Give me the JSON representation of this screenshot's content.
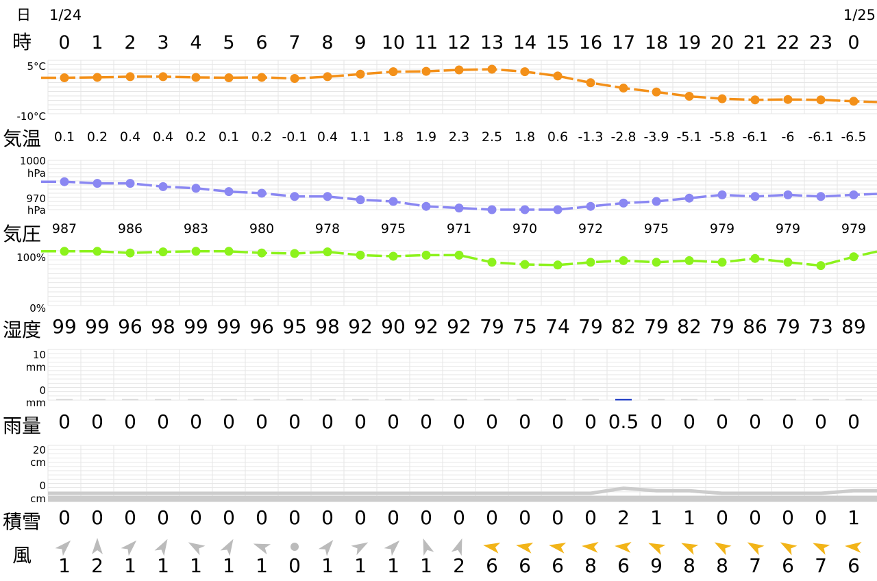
{
  "dates": {
    "label": "日",
    "day1": "1/24",
    "day2": "1/25"
  },
  "hours": {
    "label": "時",
    "values": [
      "0",
      "1",
      "2",
      "3",
      "4",
      "5",
      "6",
      "7",
      "8",
      "9",
      "10",
      "11",
      "12",
      "13",
      "14",
      "15",
      "16",
      "17",
      "18",
      "19",
      "20",
      "21",
      "22",
      "23",
      "0"
    ]
  },
  "temperature": {
    "label": "気温",
    "color": "#f39019",
    "axis_top": "5°C",
    "axis_bottom": "-10°C",
    "ylim": [
      -10,
      5
    ],
    "labels": [
      "0.1",
      "0.2",
      "0.4",
      "0.4",
      "0.2",
      "0.1",
      "0.2",
      "-0.1",
      "0.4",
      "1.1",
      "1.8",
      "1.9",
      "2.3",
      "2.5",
      "1.8",
      "0.6",
      "-1.3",
      "-2.8",
      "-3.9",
      "-5.1",
      "-5.8",
      "-6.1",
      "-6",
      "-6.1",
      "-6.5"
    ]
  },
  "pressure": {
    "label": "気圧",
    "color": "#8a87f2",
    "axis_top_value": "1000",
    "axis_top_unit": "hPa",
    "axis_bottom_value": "970",
    "axis_bottom_unit": "hPa",
    "ylim": [
      970,
      1000
    ],
    "labels": [
      "987",
      "986",
      "983",
      "980",
      "978",
      "975",
      "971",
      "970",
      "972",
      "975",
      "979",
      "979",
      "979"
    ]
  },
  "humidity": {
    "label": "湿度",
    "color": "#8cf21c",
    "axis_top": "100%",
    "axis_bottom": "0%",
    "ylim": [
      0,
      100
    ],
    "labels": [
      "99",
      "99",
      "96",
      "98",
      "99",
      "99",
      "96",
      "95",
      "98",
      "92",
      "90",
      "92",
      "92",
      "79",
      "75",
      "74",
      "79",
      "82",
      "79",
      "82",
      "79",
      "86",
      "79",
      "73",
      "89"
    ]
  },
  "rain": {
    "label": "雨量",
    "color": "#2a46c8",
    "axis_top_value": "10",
    "axis_top_unit": "mm",
    "axis_bottom_value": "0",
    "axis_bottom_unit": "mm",
    "labels": [
      "0",
      "0",
      "0",
      "0",
      "0",
      "0",
      "0",
      "0",
      "0",
      "0",
      "0",
      "0",
      "0",
      "0",
      "0",
      "0",
      "0",
      "0.5",
      "0",
      "0",
      "0",
      "0",
      "0",
      "0",
      "0"
    ]
  },
  "snow": {
    "label": "積雪",
    "color": "#cccccc",
    "axis_top_value": "20",
    "axis_top_unit": "cm",
    "axis_bottom_value": "0",
    "axis_bottom_unit": "cm",
    "labels": [
      "0",
      "0",
      "0",
      "0",
      "0",
      "0",
      "0",
      "0",
      "0",
      "0",
      "0",
      "0",
      "0",
      "0",
      "0",
      "0",
      "0",
      "2",
      "1",
      "1",
      "0",
      "0",
      "0",
      "0",
      "1"
    ]
  },
  "wind": {
    "label": "風",
    "calm_color": "#bbbbbb",
    "strong_color": "#f2b418",
    "speeds": [
      "1",
      "2",
      "1",
      "1",
      "1",
      "1",
      "1",
      "0",
      "1",
      "1",
      "1",
      "1",
      "2",
      "6",
      "6",
      "6",
      "8",
      "6",
      "9",
      "8",
      "8",
      "7",
      "6",
      "7",
      "6"
    ],
    "direction_deg": [
      45,
      0,
      45,
      30,
      300,
      30,
      290,
      null,
      40,
      60,
      45,
      340,
      20,
      280,
      280,
      280,
      275,
      275,
      295,
      295,
      300,
      300,
      300,
      295,
      275
    ]
  },
  "chart_data": [
    {
      "type": "line",
      "title": "",
      "ylabel": "気温",
      "ylim": [
        -10,
        5
      ],
      "x": [
        "0",
        "1",
        "2",
        "3",
        "4",
        "5",
        "6",
        "7",
        "8",
        "9",
        "10",
        "11",
        "12",
        "13",
        "14",
        "15",
        "16",
        "17",
        "18",
        "19",
        "20",
        "21",
        "22",
        "23",
        "0"
      ],
      "values": [
        0.1,
        0.2,
        0.4,
        0.4,
        0.2,
        0.1,
        0.2,
        -0.1,
        0.4,
        1.1,
        1.8,
        1.9,
        2.3,
        2.5,
        1.8,
        0.6,
        -1.3,
        -2.8,
        -3.9,
        -5.1,
        -5.8,
        -6.1,
        -6,
        -6.1,
        -6.5
      ]
    },
    {
      "type": "line",
      "title": "",
      "ylabel": "気圧",
      "ylim": [
        970,
        1000
      ],
      "x": [
        "0",
        "1",
        "2",
        "3",
        "4",
        "5",
        "6",
        "7",
        "8",
        "9",
        "10",
        "11",
        "12",
        "13",
        "14",
        "15",
        "16",
        "17",
        "18",
        "19",
        "20",
        "21",
        "22",
        "23",
        "0"
      ],
      "values": [
        987,
        986,
        986,
        984,
        983,
        981,
        980,
        978,
        978,
        976,
        975,
        972,
        971,
        970,
        970,
        970,
        972,
        974,
        975,
        977,
        979,
        978,
        979,
        978,
        979
      ]
    },
    {
      "type": "line",
      "title": "",
      "ylabel": "湿度",
      "ylim": [
        0,
        100
      ],
      "x": [
        "0",
        "1",
        "2",
        "3",
        "4",
        "5",
        "6",
        "7",
        "8",
        "9",
        "10",
        "11",
        "12",
        "13",
        "14",
        "15",
        "16",
        "17",
        "18",
        "19",
        "20",
        "21",
        "22",
        "23",
        "0"
      ],
      "values": [
        99,
        99,
        96,
        98,
        99,
        99,
        96,
        95,
        98,
        92,
        90,
        92,
        92,
        79,
        75,
        74,
        79,
        82,
        79,
        82,
        79,
        86,
        79,
        73,
        89
      ]
    },
    {
      "type": "bar",
      "title": "",
      "ylabel": "雨量",
      "ylim": [
        0,
        10
      ],
      "x": [
        "0",
        "1",
        "2",
        "3",
        "4",
        "5",
        "6",
        "7",
        "8",
        "9",
        "10",
        "11",
        "12",
        "13",
        "14",
        "15",
        "16",
        "17",
        "18",
        "19",
        "20",
        "21",
        "22",
        "23",
        "0"
      ],
      "values": [
        0,
        0,
        0,
        0,
        0,
        0,
        0,
        0,
        0,
        0,
        0,
        0,
        0,
        0,
        0,
        0,
        0,
        0.5,
        0,
        0,
        0,
        0,
        0,
        0,
        0
      ]
    },
    {
      "type": "area",
      "title": "",
      "ylabel": "積雪",
      "ylim": [
        0,
        20
      ],
      "x": [
        "0",
        "1",
        "2",
        "3",
        "4",
        "5",
        "6",
        "7",
        "8",
        "9",
        "10",
        "11",
        "12",
        "13",
        "14",
        "15",
        "16",
        "17",
        "18",
        "19",
        "20",
        "21",
        "22",
        "23",
        "0"
      ],
      "values": [
        0,
        0,
        0,
        0,
        0,
        0,
        0,
        0,
        0,
        0,
        0,
        0,
        0,
        0,
        0,
        0,
        0,
        2,
        1,
        1,
        0,
        0,
        0,
        0,
        1
      ]
    }
  ]
}
